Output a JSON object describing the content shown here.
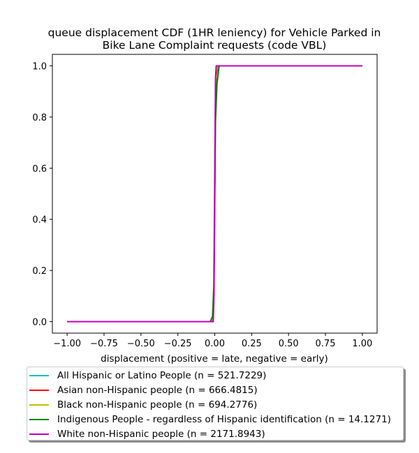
{
  "chart_data": {
    "type": "line",
    "title_line1": "queue displacement CDF (1HR leniency) for Vehicle Parked in",
    "title_line2": "Bike Lane Complaint  requests (code VBL)",
    "xlabel": "displacement (positive = late, negative = early)",
    "ylabel": "",
    "xlim": [
      -1.1,
      1.1
    ],
    "ylim": [
      -0.045,
      1.045
    ],
    "x_ticks": [
      -1.0,
      -0.75,
      -0.5,
      -0.25,
      0.0,
      0.25,
      0.5,
      0.75,
      1.0
    ],
    "x_tick_labels": [
      "−1.00",
      "−0.75",
      "−0.50",
      "−0.25",
      "0.00",
      "0.25",
      "0.50",
      "0.75",
      "1.00"
    ],
    "y_ticks": [
      0.0,
      0.2,
      0.4,
      0.6,
      0.8,
      1.0
    ],
    "y_tick_labels": [
      "0.0",
      "0.2",
      "0.4",
      "0.6",
      "0.8",
      "1.0"
    ],
    "grid": false,
    "legend_position": "below plot",
    "series": [
      {
        "name": "All Hispanic or Latino People (n = 521.7229)",
        "color": "#17becf",
        "x": [
          -1.0,
          -0.02,
          -0.01,
          -0.005,
          0.0,
          0.005,
          0.01,
          0.02,
          1.0
        ],
        "y": [
          0.0,
          0.0,
          0.02,
          0.2,
          0.55,
          0.85,
          0.97,
          1.0,
          1.0
        ]
      },
      {
        "name": "Asian non-Hispanic people (n = 666.4815)",
        "color": "#ff0000",
        "x": [
          -1.0,
          -0.02,
          -0.01,
          -0.005,
          0.0,
          0.005,
          0.01,
          0.02,
          1.0
        ],
        "y": [
          0.0,
          0.0,
          0.02,
          0.18,
          0.52,
          0.84,
          0.96,
          1.0,
          1.0
        ]
      },
      {
        "name": "Black non-Hispanic people (n = 694.2776)",
        "color": "#bfbf00",
        "x": [
          -1.0,
          -0.02,
          -0.01,
          -0.005,
          0.0,
          0.005,
          0.01,
          0.02,
          1.0
        ],
        "y": [
          0.0,
          0.0,
          0.03,
          0.25,
          0.6,
          0.9,
          0.98,
          1.0,
          1.0
        ]
      },
      {
        "name": "Indigenous People - regardless of Hispanic identification (n = 14.1271)",
        "color": "#008000",
        "x": [
          -1.0,
          -0.03,
          -0.015,
          -0.005,
          0.0,
          0.005,
          0.015,
          0.03,
          1.0
        ],
        "y": [
          0.0,
          0.0,
          0.02,
          0.15,
          0.45,
          0.78,
          0.93,
          1.0,
          1.0
        ]
      },
      {
        "name": "White non-Hispanic people (n = 2171.8943)",
        "color": "#bf00bf",
        "x": [
          -1.0,
          -0.01,
          -0.005,
          0.0,
          0.005,
          0.01,
          1.0
        ],
        "y": [
          0.0,
          0.0,
          0.1,
          0.5,
          0.95,
          1.0,
          1.0
        ]
      }
    ]
  }
}
